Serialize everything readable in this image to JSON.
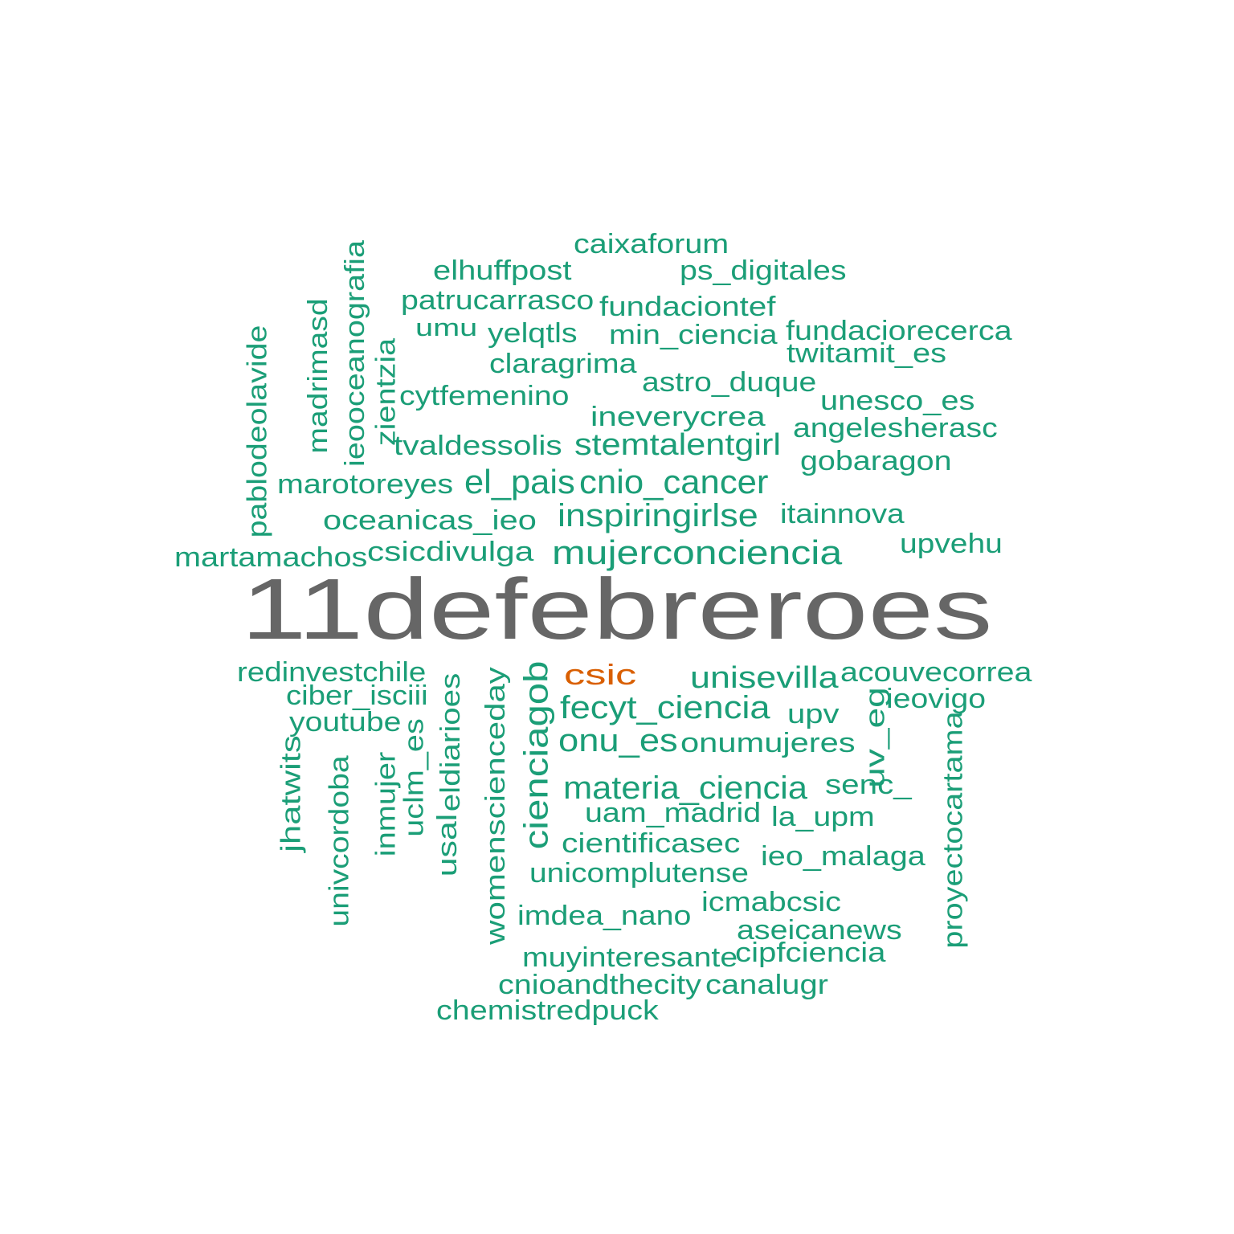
{
  "chart_data": {
    "type": "wordcloud",
    "colors": {
      "top": "#666666",
      "second": "#D95F02",
      "rest": "#1B9E77"
    },
    "words": [
      {
        "text": "11defebreroes",
        "tier": "top"
      },
      {
        "text": "csic",
        "tier": "second"
      },
      {
        "text": "caixaforum",
        "tier": "rest"
      },
      {
        "text": "elhuffpost",
        "tier": "rest"
      },
      {
        "text": "ps_digitales",
        "tier": "rest"
      },
      {
        "text": "patrucarrasco",
        "tier": "rest"
      },
      {
        "text": "fundaciontef",
        "tier": "rest"
      },
      {
        "text": "umu",
        "tier": "rest"
      },
      {
        "text": "yelqtls",
        "tier": "rest"
      },
      {
        "text": "min_ciencia",
        "tier": "rest"
      },
      {
        "text": "fundaciorecerca",
        "tier": "rest"
      },
      {
        "text": "twitamit_es",
        "tier": "rest"
      },
      {
        "text": "claragrima",
        "tier": "rest"
      },
      {
        "text": "astro_duque",
        "tier": "rest"
      },
      {
        "text": "cytfemenino",
        "tier": "rest"
      },
      {
        "text": "unesco_es",
        "tier": "rest"
      },
      {
        "text": "ineverycrea",
        "tier": "rest"
      },
      {
        "text": "angelesherasc",
        "tier": "rest"
      },
      {
        "text": "tvaldessolis",
        "tier": "rest"
      },
      {
        "text": "stemtalentgirl",
        "tier": "rest"
      },
      {
        "text": "gobaragon",
        "tier": "rest"
      },
      {
        "text": "marotoreyes",
        "tier": "rest"
      },
      {
        "text": "el_pais",
        "tier": "rest"
      },
      {
        "text": "cnio_cancer",
        "tier": "rest"
      },
      {
        "text": "oceanicas_ieo",
        "tier": "rest"
      },
      {
        "text": "inspiringirlse",
        "tier": "rest"
      },
      {
        "text": "itainnova",
        "tier": "rest"
      },
      {
        "text": "martamachos",
        "tier": "rest"
      },
      {
        "text": "csicdivulga",
        "tier": "rest"
      },
      {
        "text": "mujerconciencia",
        "tier": "rest"
      },
      {
        "text": "upvehu",
        "tier": "rest"
      },
      {
        "text": "pablodeolavide",
        "tier": "rest"
      },
      {
        "text": "madrimasd",
        "tier": "rest"
      },
      {
        "text": "ieooceanografia",
        "tier": "rest"
      },
      {
        "text": "zientzia",
        "tier": "rest"
      },
      {
        "text": "redinvestchile",
        "tier": "rest"
      },
      {
        "text": "unisevilla",
        "tier": "rest"
      },
      {
        "text": "acouvecorrea",
        "tier": "rest"
      },
      {
        "text": "ciber_isciii",
        "tier": "rest"
      },
      {
        "text": "fecyt_ciencia",
        "tier": "rest"
      },
      {
        "text": "ieovigo",
        "tier": "rest"
      },
      {
        "text": "youtube",
        "tier": "rest"
      },
      {
        "text": "upv",
        "tier": "rest"
      },
      {
        "text": "onu_es",
        "tier": "rest"
      },
      {
        "text": "onumujeres",
        "tier": "rest"
      },
      {
        "text": "materia_ciencia",
        "tier": "rest"
      },
      {
        "text": "senc_",
        "tier": "rest"
      },
      {
        "text": "uam_madrid",
        "tier": "rest"
      },
      {
        "text": "la_upm",
        "tier": "rest"
      },
      {
        "text": "cientificasec",
        "tier": "rest"
      },
      {
        "text": "ieo_malaga",
        "tier": "rest"
      },
      {
        "text": "unicomplutense",
        "tier": "rest"
      },
      {
        "text": "icmabcsic",
        "tier": "rest"
      },
      {
        "text": "imdea_nano",
        "tier": "rest"
      },
      {
        "text": "aseicanews",
        "tier": "rest"
      },
      {
        "text": "muyinteresante",
        "tier": "rest"
      },
      {
        "text": "cipfciencia",
        "tier": "rest"
      },
      {
        "text": "cnioandthecity",
        "tier": "rest"
      },
      {
        "text": "canalugr",
        "tier": "rest"
      },
      {
        "text": "chemistredpuck",
        "tier": "rest"
      },
      {
        "text": "jhatwits",
        "tier": "rest"
      },
      {
        "text": "univcordoba",
        "tier": "rest"
      },
      {
        "text": "inmujer",
        "tier": "rest"
      },
      {
        "text": "uclm_es",
        "tier": "rest"
      },
      {
        "text": "usal",
        "tier": "rest"
      },
      {
        "text": "eldiarioes",
        "tier": "rest"
      },
      {
        "text": "womenscienceday",
        "tier": "rest"
      },
      {
        "text": "cienciagob",
        "tier": "rest"
      },
      {
        "text": "uv_eg",
        "tier": "rest"
      },
      {
        "text": "proyectocartama",
        "tier": "rest"
      }
    ]
  }
}
